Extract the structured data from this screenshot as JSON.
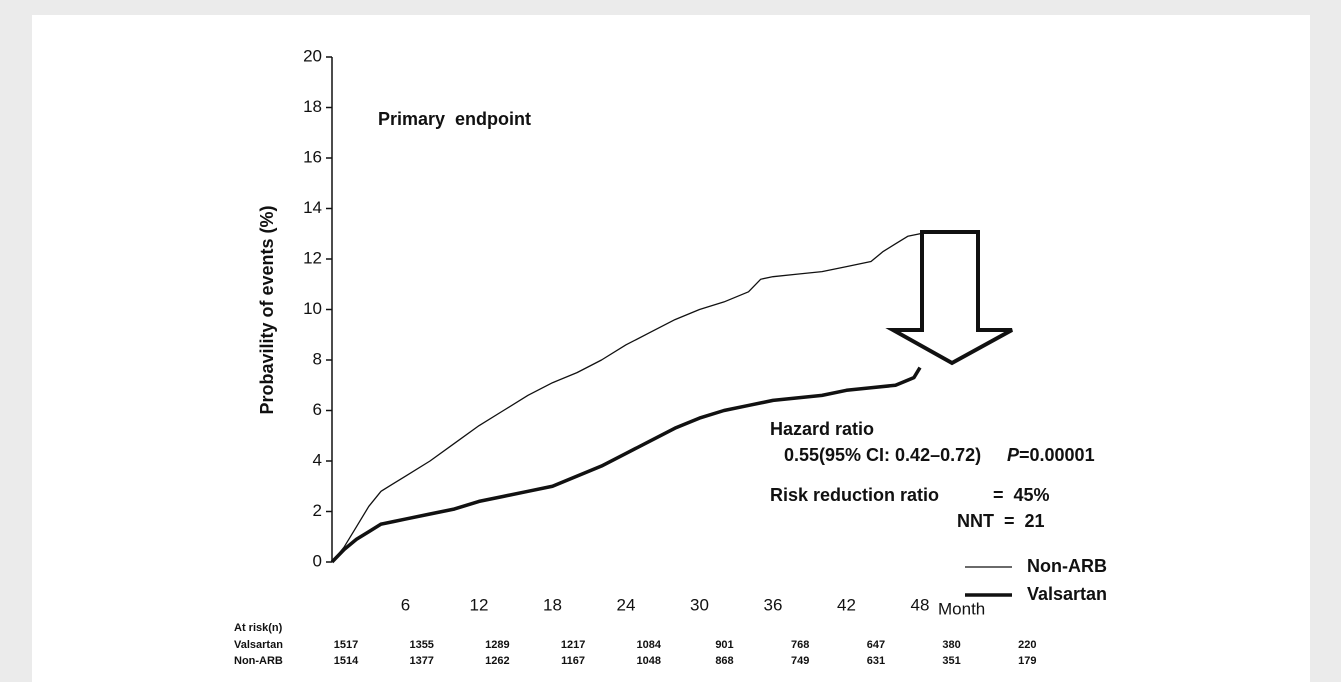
{
  "chart_data": {
    "type": "line",
    "title": "Primary  endpoint",
    "y_label": "Probavility of events (%)",
    "x_label": "Month",
    "xlim": [
      0,
      52
    ],
    "ylim": [
      0,
      20
    ],
    "xticks": [
      6,
      12,
      18,
      24,
      30,
      36,
      42,
      48
    ],
    "yticks": [
      0,
      2,
      4,
      6,
      8,
      10,
      12,
      14,
      16,
      18,
      20
    ],
    "series": [
      {
        "name": "Non-ARB",
        "color": "#111111",
        "width": 1.3,
        "x": [
          0,
          1,
          2,
          3,
          4,
          5,
          6,
          8,
          10,
          12,
          14,
          16,
          18,
          20,
          22,
          24,
          26,
          28,
          30,
          32,
          34,
          35,
          36,
          38,
          40,
          42,
          44,
          45,
          46,
          47,
          48,
          49
        ],
        "values": [
          0,
          0.6,
          1.4,
          2.2,
          2.8,
          3.1,
          3.4,
          4.0,
          4.7,
          5.4,
          6.0,
          6.6,
          7.1,
          7.5,
          8.0,
          8.6,
          9.1,
          9.6,
          10.0,
          10.3,
          10.7,
          11.2,
          11.3,
          11.4,
          11.5,
          11.7,
          11.9,
          12.3,
          12.6,
          12.9,
          13.0,
          13.1
        ]
      },
      {
        "name": "Valsartan",
        "color": "#111111",
        "width": 3.5,
        "x": [
          0,
          1,
          2,
          3,
          4,
          5,
          6,
          8,
          10,
          12,
          14,
          16,
          18,
          20,
          22,
          24,
          26,
          28,
          30,
          32,
          34,
          36,
          38,
          40,
          42,
          44,
          46,
          47.5,
          48
        ],
        "values": [
          0,
          0.5,
          0.9,
          1.2,
          1.5,
          1.6,
          1.7,
          1.9,
          2.1,
          2.4,
          2.6,
          2.8,
          3.0,
          3.4,
          3.8,
          4.3,
          4.8,
          5.3,
          5.7,
          6.0,
          6.2,
          6.4,
          6.5,
          6.6,
          6.8,
          6.9,
          7.0,
          7.3,
          7.7
        ]
      }
    ],
    "annotations": {
      "hazard_title": "Hazard ratio",
      "hazard_ci": "0.55(95% CI: 0.42–0.72)",
      "p_label": "P",
      "p_value": "=0.00001",
      "rrr_label": "Risk reduction ratio",
      "rrr_value": "=  45%",
      "nnt": "NNT  =  21"
    },
    "at_risk": {
      "title": "At risk(n)",
      "rows": [
        {
          "name": "Valsartan",
          "values": [
            1517,
            1355,
            1289,
            1217,
            1084,
            901,
            768,
            647,
            380,
            220
          ]
        },
        {
          "name": "Non-ARB",
          "values": [
            1514,
            1377,
            1262,
            1167,
            1048,
            868,
            749,
            631,
            351,
            179
          ]
        }
      ]
    }
  }
}
